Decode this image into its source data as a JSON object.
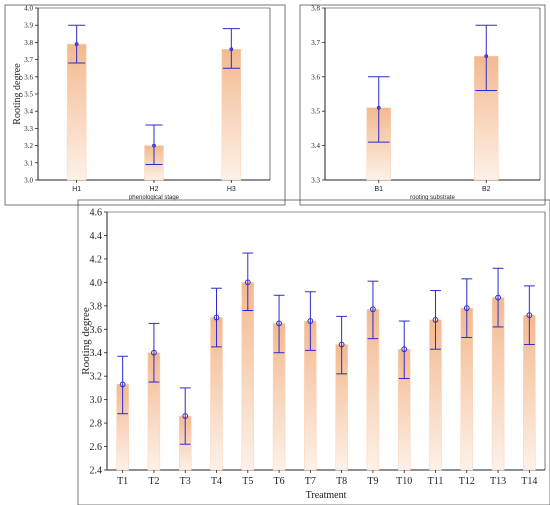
{
  "colors": {
    "bar_top": "#f3b98f",
    "bar_bottom": "#fdf1e8",
    "error": "#2b2bd1",
    "point": "#2b2bd1",
    "frame_accent": "#f0a060"
  },
  "chart_data": [
    {
      "type": "bar",
      "categories": [
        "H1",
        "H2",
        "H3"
      ],
      "values": [
        3.79,
        3.2,
        3.76
      ],
      "error_low": [
        3.68,
        3.09,
        3.65
      ],
      "error_high": [
        3.9,
        3.32,
        3.88
      ],
      "xlabel": "phenological stage",
      "ylabel": "Rooting degree",
      "ylim": [
        3.0,
        4.0
      ],
      "yticks": [
        "3.0",
        "3.1",
        "3.2",
        "3.3",
        "3.4",
        "3.5",
        "3.6",
        "3.7",
        "3.8",
        "3.9",
        "4.0"
      ],
      "grid": false
    },
    {
      "type": "bar",
      "categories": [
        "B1",
        "B2"
      ],
      "values": [
        3.51,
        3.66
      ],
      "error_low": [
        3.41,
        3.56
      ],
      "error_high": [
        3.6,
        3.75
      ],
      "xlabel": "rooting substrate",
      "ylabel": "",
      "ylim": [
        3.3,
        3.8
      ],
      "yticks": [
        "3.3",
        "3.4",
        "3.5",
        "3.6",
        "3.7",
        "3.8"
      ],
      "grid": false
    },
    {
      "type": "bar",
      "categories": [
        "T1",
        "T2",
        "T3",
        "T4",
        "T5",
        "T6",
        "T7",
        "T8",
        "T9",
        "T10",
        "T11",
        "T12",
        "T13",
        "T14"
      ],
      "values": [
        3.13,
        3.4,
        2.86,
        3.7,
        4.0,
        3.65,
        3.67,
        3.47,
        3.77,
        3.43,
        3.68,
        3.78,
        3.87,
        3.72
      ],
      "error_low": [
        2.88,
        3.15,
        2.62,
        3.45,
        3.76,
        3.4,
        3.42,
        3.22,
        3.52,
        3.18,
        3.43,
        3.53,
        3.62,
        3.47
      ],
      "error_high": [
        3.37,
        3.65,
        3.1,
        3.95,
        4.25,
        3.89,
        3.92,
        3.71,
        4.01,
        3.67,
        3.93,
        4.03,
        4.12,
        3.97
      ],
      "xlabel": "Treatment",
      "ylabel": "Rooting degree",
      "ylim": [
        2.4,
        4.6
      ],
      "yticks": [
        "2.4",
        "2.6",
        "2.8",
        "3.0",
        "3.2",
        "3.4",
        "3.6",
        "3.8",
        "4.0",
        "4.2",
        "4.4",
        "4.6"
      ],
      "grid": false
    }
  ]
}
